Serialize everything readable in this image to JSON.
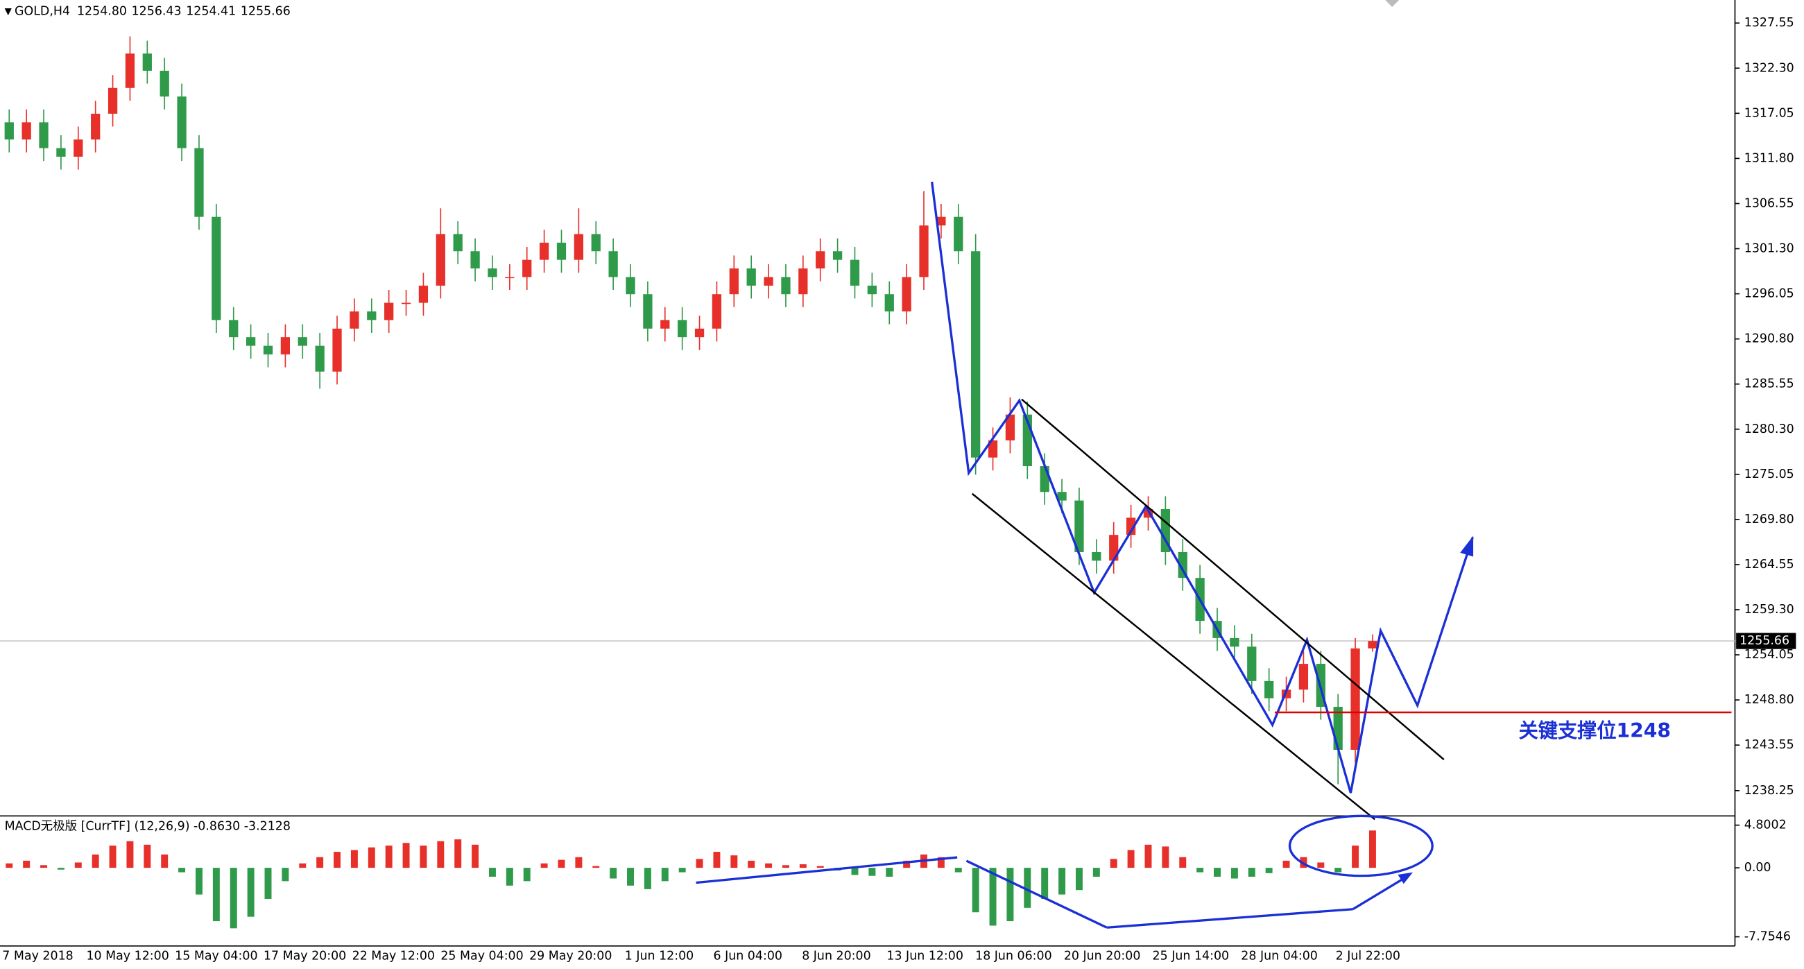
{
  "info": {
    "symbol": "GOLD,H4",
    "open": "1254.80",
    "high": "1256.43",
    "low": "1254.41",
    "close": "1255.66"
  },
  "annotation": "关键支撑位1248",
  "macd_label": "MACD无极版 [CurrTF] (12,26,9) -0.8630 -3.2128",
  "chart_data": [
    {
      "type": "candlestick",
      "up_color": "#e8302a",
      "down_color": "#2e9a4a",
      "xtick_labels": [
        "7 May 2018",
        "10 May 12:00",
        "15 May 04:00",
        "17 May 20:00",
        "22 May 12:00",
        "25 May 04:00",
        "29 May 20:00",
        "1 Jun 12:00",
        "6 Jun 04:00",
        "8 Jun 20:00",
        "13 Jun 12:00",
        "18 Jun 06:00",
        "20 Jun 20:00",
        "25 Jun 14:00",
        "28 Jun 04:00",
        "2 Jul 22:00"
      ],
      "open": [
        1316,
        1314,
        1316,
        1313,
        1312,
        1314,
        1317,
        1320,
        1324,
        1322,
        1319,
        1313,
        1305,
        1293,
        1291,
        1290,
        1289,
        1291,
        1290,
        1287,
        1292,
        1294,
        1293,
        1295,
        1295,
        1297,
        1303,
        1301,
        1299,
        1298,
        1298,
        1300,
        1302,
        1300,
        1303,
        1301,
        1298,
        1296,
        1292,
        1293,
        1291,
        1292,
        1296,
        1299,
        1297,
        1298,
        1296,
        1299,
        1301,
        1300,
        1297,
        1296,
        1294,
        1298,
        1304,
        1305,
        1301,
        1277,
        1279,
        1282,
        1276,
        1273,
        1272,
        1266,
        1265,
        1268,
        1270,
        1271,
        1266,
        1263,
        1258,
        1256,
        1255,
        1251,
        1249,
        1250,
        1253,
        1248,
        1243,
        1254.8
      ],
      "high": [
        1317.5,
        1317.5,
        1317.5,
        1314.5,
        1315.5,
        1318.5,
        1321.5,
        1326,
        1325.5,
        1323.5,
        1320.5,
        1314.5,
        1306.5,
        1294.5,
        1292.5,
        1291.5,
        1292.5,
        1292.5,
        1291.5,
        1293.5,
        1295.5,
        1295.5,
        1296.5,
        1296.5,
        1298.5,
        1306,
        1304.5,
        1302.5,
        1300.5,
        1299.5,
        1301.5,
        1303.5,
        1303.5,
        1306,
        1304.5,
        1302.5,
        1299.5,
        1297.5,
        1294.5,
        1294.5,
        1293.5,
        1297.5,
        1300.5,
        1300.5,
        1299.5,
        1299.5,
        1300.5,
        1302.5,
        1302.5,
        1301.5,
        1298.5,
        1297.5,
        1299.5,
        1308,
        1306.5,
        1306.5,
        1303,
        1280.5,
        1284,
        1283.5,
        1277.5,
        1274.5,
        1273.5,
        1267.5,
        1269.5,
        1271.5,
        1272.5,
        1272.5,
        1267.5,
        1264.5,
        1259.5,
        1257.5,
        1256.5,
        1252.5,
        1251.5,
        1254.5,
        1254.5,
        1249.5,
        1256,
        1256.43
      ],
      "low": [
        1312.5,
        1312.5,
        1311.5,
        1310.5,
        1310.5,
        1312.5,
        1315.5,
        1318.5,
        1320.5,
        1317.5,
        1311.5,
        1303.5,
        1291.5,
        1289.5,
        1288.5,
        1287.5,
        1287.5,
        1288.5,
        1285,
        1285.5,
        1290.5,
        1291.5,
        1291.5,
        1293.5,
        1293.5,
        1295.5,
        1299.5,
        1297.5,
        1296.5,
        1296.5,
        1296.5,
        1298.5,
        1298.5,
        1298.5,
        1299.5,
        1296.5,
        1294.5,
        1290.5,
        1290.5,
        1289.5,
        1289.5,
        1290.5,
        1294.5,
        1295.5,
        1295.5,
        1294.5,
        1294.5,
        1297.5,
        1298.5,
        1295.5,
        1294.5,
        1292.5,
        1292.5,
        1296.5,
        1302.5,
        1299.5,
        1275,
        1275.5,
        1277.5,
        1274.5,
        1271.5,
        1270.5,
        1264.5,
        1263.5,
        1263.5,
        1266.5,
        1268.5,
        1264.5,
        1261.5,
        1256.5,
        1254.5,
        1253.5,
        1249.5,
        1247.5,
        1247.5,
        1248.5,
        1246.5,
        1239,
        1241.5,
        1254.41
      ],
      "close": [
        1314,
        1316,
        1313,
        1312,
        1314,
        1317,
        1320,
        1324,
        1322,
        1319,
        1313,
        1305,
        1293,
        1291,
        1290,
        1289,
        1291,
        1290,
        1287,
        1292,
        1294,
        1293,
        1295,
        1295,
        1297,
        1303,
        1301,
        1299,
        1298,
        1298,
        1300,
        1302,
        1300,
        1303,
        1301,
        1298,
        1296,
        1292,
        1293,
        1291,
        1292,
        1296,
        1299,
        1297,
        1298,
        1296,
        1299,
        1301,
        1300,
        1297,
        1296,
        1294,
        1298,
        1304,
        1305,
        1301,
        1277,
        1279,
        1282,
        1276,
        1273,
        1272,
        1266,
        1265,
        1268,
        1270,
        1271,
        1266,
        1263,
        1258,
        1256,
        1255,
        1251,
        1249,
        1250,
        1253,
        1248,
        1243,
        1254.8,
        1255.66
      ],
      "current_price": 1255.66,
      "ylim": [
        1235.44,
        1330.23
      ],
      "yticks": [
        {
          "value": 1327.55,
          "label": "1327.55"
        },
        {
          "value": 1322.3,
          "label": "1322.30"
        },
        {
          "value": 1317.05,
          "label": "1317.05"
        },
        {
          "value": 1311.8,
          "label": "1311.80"
        },
        {
          "value": 1306.55,
          "label": "1306.55"
        },
        {
          "value": 1301.3,
          "label": "1301.30"
        },
        {
          "value": 1296.05,
          "label": "1296.05"
        },
        {
          "value": 1290.8,
          "label": "1290.80"
        },
        {
          "value": 1285.55,
          "label": "1285.55"
        },
        {
          "value": 1280.3,
          "label": "1280.30"
        },
        {
          "value": 1275.05,
          "label": "1275.05"
        },
        {
          "value": 1269.8,
          "label": "1269.80"
        },
        {
          "value": 1264.55,
          "label": "1264.55"
        },
        {
          "value": 1259.3,
          "label": "1259.30"
        },
        {
          "value": 1254.05,
          "label": "1254.05"
        },
        {
          "value": 1248.8,
          "label": "1248.80"
        },
        {
          "value": 1243.55,
          "label": "1243.55"
        },
        {
          "value": 1238.25,
          "label": "1238.25"
        }
      ]
    },
    {
      "type": "bar",
      "up_color": "#e8302a",
      "down_color": "#2e9a4a",
      "values": [
        0.5,
        0.8,
        0.3,
        -0.2,
        0.6,
        1.5,
        2.5,
        3.0,
        2.6,
        1.5,
        -0.5,
        -3.0,
        -6.0,
        -6.8,
        -5.5,
        -3.5,
        -1.5,
        0.5,
        1.2,
        1.8,
        2.0,
        2.3,
        2.5,
        2.8,
        2.5,
        3.0,
        3.2,
        2.6,
        -1.0,
        -2.0,
        -1.5,
        0.5,
        0.9,
        1.2,
        0.2,
        -1.2,
        -2.0,
        -2.4,
        -1.5,
        -0.5,
        1.0,
        1.8,
        1.4,
        0.8,
        0.5,
        0.3,
        0.4,
        0.2,
        -0.3,
        -0.8,
        -0.9,
        -1.0,
        0.8,
        1.5,
        1.2,
        -0.5,
        -5.0,
        -6.5,
        -6.0,
        -4.5,
        -3.5,
        -3.0,
        -2.5,
        -1.0,
        1.0,
        2.0,
        2.6,
        2.4,
        1.2,
        -0.5,
        -1.0,
        -1.2,
        -1.0,
        -0.6,
        0.8,
        1.2,
        0.6,
        -0.5,
        2.5,
        4.2
      ],
      "ylim": [
        -8.79,
        5.706
      ],
      "yticks": [
        4.8002,
        {
          "value": 0,
          "label": "0.00"
        },
        -7.7546
      ]
    }
  ]
}
